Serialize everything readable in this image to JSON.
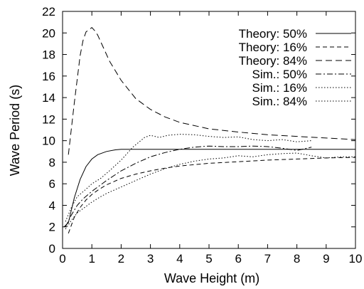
{
  "chart_data": {
    "type": "line",
    "xlabel": "Wave Height (m)",
    "ylabel": "Wave Period (s)",
    "xlim": [
      0,
      10
    ],
    "ylim": [
      0,
      22
    ],
    "xticks": [
      0,
      1,
      2,
      3,
      4,
      5,
      6,
      7,
      8,
      9,
      10
    ],
    "yticks": [
      0,
      2,
      4,
      6,
      8,
      10,
      12,
      14,
      16,
      18,
      20,
      22
    ],
    "grid": false,
    "legend_position": "top-right",
    "series": [
      {
        "name": "Theory: 50%",
        "dash": "solid",
        "x": [
          0.05,
          0.2,
          0.4,
          0.6,
          0.8,
          1.0,
          1.2,
          1.5,
          1.8,
          2.0,
          2.2,
          2.5,
          3.0,
          4.0,
          5.0,
          6.0,
          7.0,
          8.0,
          9.0,
          10.0
        ],
        "y": [
          2.0,
          2.4,
          4.7,
          6.4,
          7.6,
          8.3,
          8.7,
          9.0,
          9.15,
          9.2,
          9.2,
          9.2,
          9.2,
          9.2,
          9.2,
          9.2,
          9.2,
          9.2,
          9.2,
          9.2
        ]
      },
      {
        "name": "Theory: 16%",
        "dash": "dashed",
        "x": [
          0.2,
          0.4,
          0.6,
          0.8,
          1.0,
          1.2,
          1.5,
          2.0,
          2.5,
          3.0,
          3.5,
          4.0,
          5.0,
          6.0,
          7.0,
          8.0,
          9.0,
          10.0
        ],
        "y": [
          1.4,
          2.9,
          3.8,
          4.5,
          5.0,
          5.4,
          5.9,
          6.5,
          6.9,
          7.2,
          7.45,
          7.65,
          7.9,
          8.05,
          8.2,
          8.3,
          8.4,
          8.45
        ]
      },
      {
        "name": "Theory: 84%",
        "dash": "long-dashed",
        "x": [
          0.2,
          0.4,
          0.6,
          0.7,
          0.8,
          0.9,
          1.0,
          1.1,
          1.2,
          1.4,
          1.6,
          2.0,
          2.5,
          3.0,
          3.5,
          4.0,
          5.0,
          6.0,
          7.0,
          8.0,
          9.0,
          10.0
        ],
        "y": [
          8.7,
          13.5,
          17.9,
          19.3,
          20.1,
          20.3,
          20.5,
          20.2,
          19.8,
          18.6,
          17.4,
          15.6,
          13.9,
          12.9,
          12.2,
          11.7,
          11.1,
          10.8,
          10.55,
          10.4,
          10.25,
          10.1
        ]
      },
      {
        "name": "Sim.: 50%",
        "dash": "dash-dot",
        "x": [
          0.1,
          0.3,
          0.5,
          0.7,
          1.0,
          1.3,
          1.5,
          2.0,
          2.5,
          3.0,
          3.5,
          4.0,
          4.5,
          5.0,
          5.5,
          6.0,
          6.5,
          7.0,
          7.5,
          8.0,
          8.5
        ],
        "y": [
          2.0,
          3.1,
          4.0,
          4.6,
          5.3,
          5.9,
          6.3,
          7.2,
          7.9,
          8.5,
          8.9,
          9.2,
          9.4,
          9.5,
          9.45,
          9.45,
          9.5,
          9.45,
          9.3,
          9.1,
          9.4
        ]
      },
      {
        "name": "Sim.: 16%",
        "dash": "dotted",
        "x": [
          0.1,
          0.3,
          0.5,
          0.8,
          1.0,
          1.3,
          1.5,
          2.0,
          2.5,
          3.0,
          3.5,
          4.0,
          4.5,
          5.0,
          5.5,
          6.0,
          6.5,
          7.0,
          7.5,
          8.0,
          8.5,
          9.0,
          9.5,
          10.0
        ],
        "y": [
          1.8,
          2.6,
          3.3,
          3.9,
          4.3,
          4.8,
          5.1,
          5.7,
          6.3,
          6.9,
          7.4,
          7.8,
          8.1,
          8.3,
          8.4,
          8.6,
          8.5,
          8.7,
          8.8,
          8.85,
          8.6,
          8.4,
          8.5,
          8.5
        ]
      },
      {
        "name": "Sim.: 84%",
        "dash": "dotted",
        "x": [
          0.1,
          0.3,
          0.5,
          0.8,
          1.0,
          1.3,
          1.6,
          2.0,
          2.4,
          2.8,
          3.0,
          3.3,
          3.6,
          4.0,
          4.5,
          5.0,
          5.5,
          6.0,
          6.5,
          7.0,
          7.5,
          8.0,
          8.5
        ],
        "y": [
          2.5,
          3.8,
          4.8,
          5.5,
          6.0,
          6.5,
          7.2,
          8.2,
          9.4,
          10.3,
          10.5,
          10.3,
          10.5,
          10.6,
          10.55,
          10.4,
          10.3,
          10.35,
          10.1,
          10.0,
          10.1,
          9.9,
          10.0
        ]
      }
    ]
  }
}
